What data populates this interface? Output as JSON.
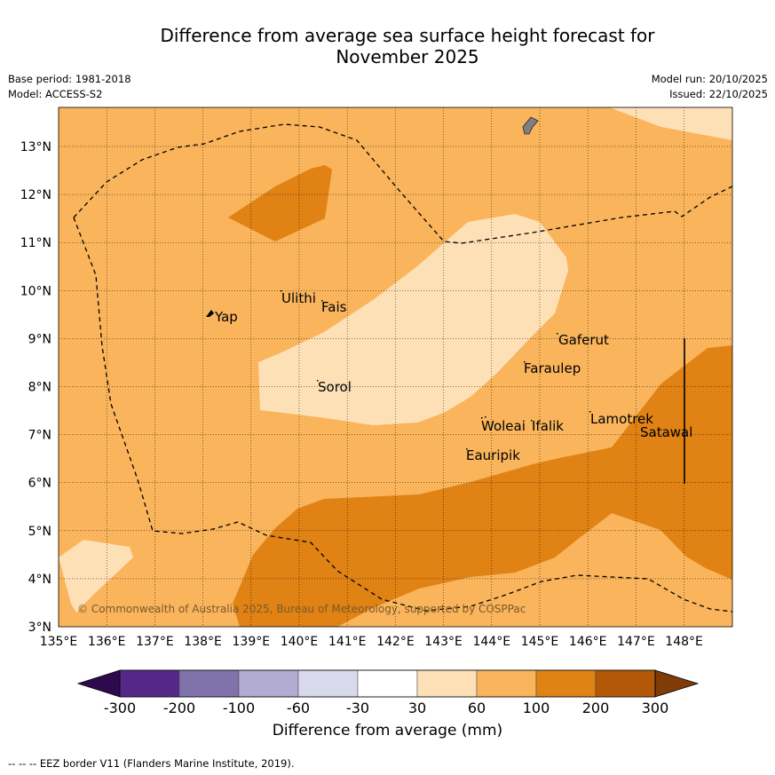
{
  "title_line1": "Difference from average sea surface height forecast for",
  "title_line2": "November 2025",
  "meta_left": {
    "base_period": "Base period: 1981-2018",
    "model": "Model: ACCESS-S2"
  },
  "meta_right": {
    "model_run": "Model run: 20/10/2025",
    "issued": "Issued: 22/10/2025"
  },
  "lon_labels": [
    "135°E",
    "136°E",
    "137°E",
    "138°E",
    "139°E",
    "140°E",
    "141°E",
    "142°E",
    "143°E",
    "144°E",
    "145°E",
    "146°E",
    "147°E",
    "148°E"
  ],
  "lat_labels": [
    "3°N",
    "4°N",
    "5°N",
    "6°N",
    "7°N",
    "8°N",
    "9°N",
    "10°N",
    "11°N",
    "12°N",
    "13°N"
  ],
  "places": [
    "Yap",
    "Ulithi",
    "Fais",
    "Sorol",
    "Gaferut",
    "Faraulep",
    "Lamotrek",
    "Satawal",
    "Woleai",
    "Ifalik",
    "Eauripik"
  ],
  "copyright": "© Commonwealth of Australia 2025, Bureau of Meteorology, supported by COSPPac",
  "colorbar": {
    "ticks": [
      "-300",
      "-200",
      "-100",
      "-60",
      "-30",
      "30",
      "60",
      "100",
      "200",
      "300"
    ],
    "colors": [
      "#2d0a4b",
      "#542788",
      "#8073ac",
      "#b2abd2",
      "#d8daeb",
      "#ffffff",
      "#fee0b6",
      "#f9b45c",
      "#e08214",
      "#b35806",
      "#7f3b08"
    ],
    "label": "Difference from average (mm)"
  },
  "footnote": "--  --  -- EEZ border V11 (Flanders Marine Institute, 2019).",
  "chart_data": {
    "type": "heatmap",
    "title": "Difference from average sea surface height forecast for November 2025",
    "variable": "Sea surface height anomaly (mm)",
    "xlim": [
      135,
      149
    ],
    "ylim": [
      3,
      13.8
    ],
    "regions": [
      {
        "range": "60 to 100",
        "color": "#f9b45c",
        "area": "background (most of domain)"
      },
      {
        "range": "30 to 60",
        "color": "#fee0b6",
        "area": "central band near Sorol and north-east corner"
      },
      {
        "range": "100 to 200",
        "color": "#e08214",
        "area": "southern band and patch north-west of Ulithi"
      }
    ]
  }
}
